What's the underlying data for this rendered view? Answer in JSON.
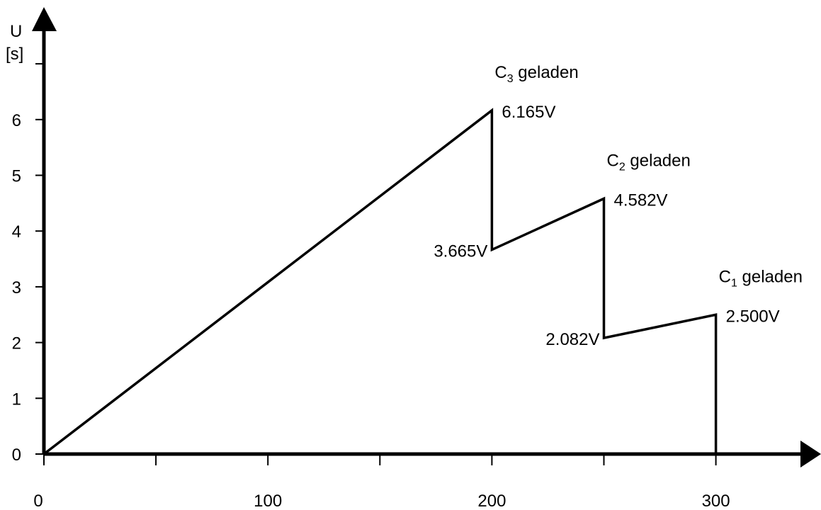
{
  "chart_data": {
    "type": "line",
    "ylabel_line1": "U",
    "ylabel_line2": "[s]",
    "xlabel": "",
    "xlim": [
      0,
      340
    ],
    "ylim": [
      0,
      7.5
    ],
    "xticks_labeled": [
      0,
      100,
      200,
      300
    ],
    "xticks_minor": [
      50,
      150,
      250
    ],
    "yticks": [
      0,
      1,
      2,
      3,
      4,
      5,
      6
    ],
    "grid": false,
    "series": [
      {
        "points": [
          {
            "x": 0,
            "y": 0
          },
          {
            "x": 200,
            "y": 6.165
          },
          {
            "x": 200,
            "y": 3.665
          },
          {
            "x": 250,
            "y": 4.582
          },
          {
            "x": 250,
            "y": 2.082
          },
          {
            "x": 300,
            "y": 2.5
          },
          {
            "x": 300,
            "y": 0
          }
        ]
      }
    ],
    "annotations": [
      {
        "text_main": "C",
        "text_sub": "3",
        "text_rest": " geladen",
        "x": 200,
        "y": 6.165,
        "placement": "above-right"
      },
      {
        "text": "6.165V",
        "x": 200,
        "y": 6.165,
        "placement": "right"
      },
      {
        "text": "3.665V",
        "x": 200,
        "y": 3.665,
        "placement": "left"
      },
      {
        "text_main": "C",
        "text_sub": "2",
        "text_rest": " geladen",
        "x": 250,
        "y": 4.582,
        "placement": "above-right"
      },
      {
        "text": "4.582V",
        "x": 250,
        "y": 4.582,
        "placement": "right"
      },
      {
        "text": "2.082V",
        "x": 250,
        "y": 2.082,
        "placement": "left"
      },
      {
        "text_main": "C",
        "text_sub": "1",
        "text_rest": " geladen",
        "x": 300,
        "y": 2.5,
        "placement": "above-right"
      },
      {
        "text": "2.500V",
        "x": 300,
        "y": 2.5,
        "placement": "right"
      }
    ],
    "line_color": "#000000"
  }
}
